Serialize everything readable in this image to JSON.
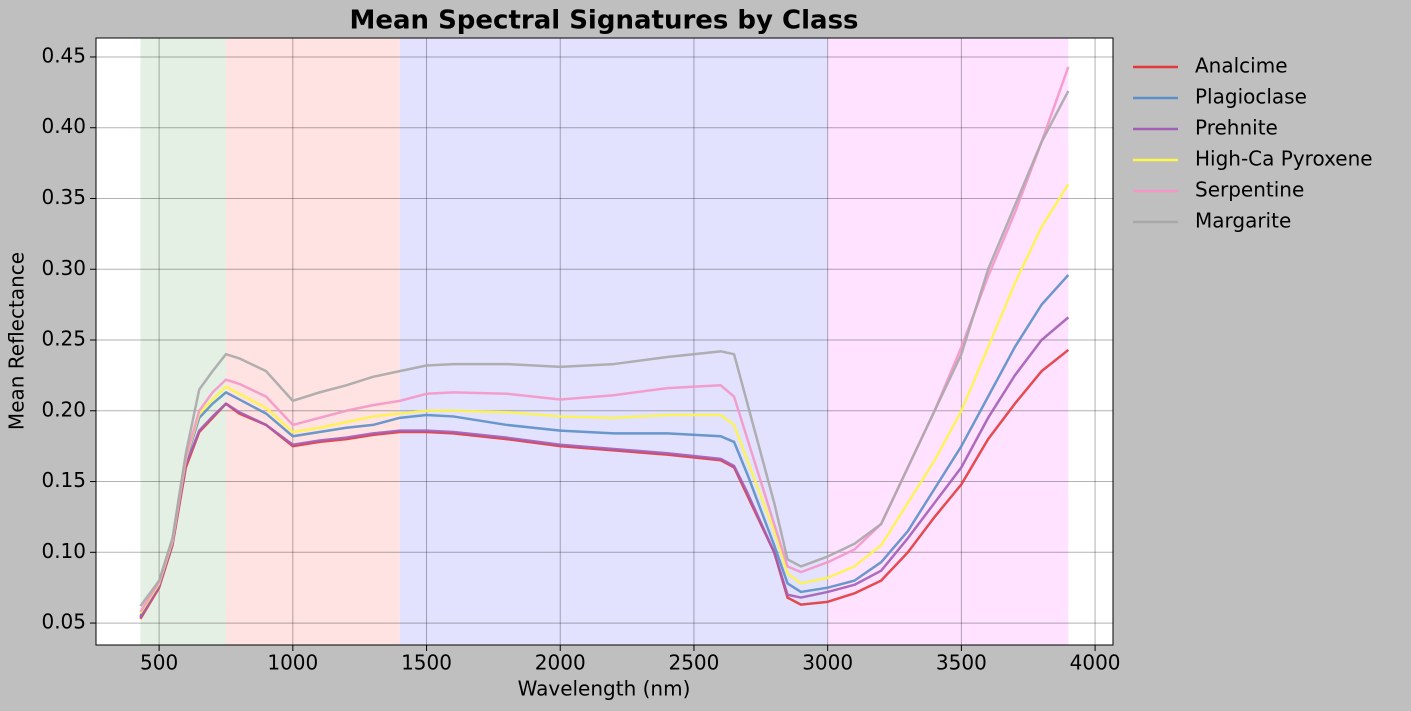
{
  "chart_data": {
    "type": "line",
    "title": "Mean Spectral Signatures by Class",
    "x_label": "Wavelength (nm)",
    "y_label": "Mean Reflectance",
    "xlim": [
      264,
      4067
    ],
    "ylim": [
      0.0345,
      0.4634
    ],
    "xticks": [
      500,
      1000,
      1500,
      2000,
      2500,
      3000,
      3500,
      4000
    ],
    "yticks": [
      0.05,
      {
        "value": 0.1,
        "label": "0.10"
      },
      0.15,
      {
        "value": 0.2,
        "label": "0.20"
      },
      0.25,
      {
        "value": 0.3,
        "label": "0.30"
      },
      0.35,
      {
        "value": 0.4,
        "label": "0.40"
      },
      0.45
    ],
    "grid": true,
    "legend": "outside-right",
    "regions": [
      {
        "start": 430,
        "end": 750,
        "color": "#e5f0e5"
      },
      {
        "start": 750,
        "end": 1400,
        "color": "#ffe2e2"
      },
      {
        "start": 1400,
        "end": 3000,
        "color": "#e2e2ff"
      },
      {
        "start": 3000,
        "end": 3900,
        "color": "#ffe2ff"
      }
    ],
    "x": [
      430,
      500,
      550,
      600,
      650,
      700,
      750,
      800,
      900,
      1000,
      1100,
      1200,
      1300,
      1400,
      1500,
      1600,
      1800,
      2000,
      2200,
      2400,
      2600,
      2650,
      2700,
      2800,
      2850,
      2900,
      3000,
      3100,
      3200,
      3300,
      3400,
      3500,
      3600,
      3700,
      3800,
      3900
    ],
    "series": [
      {
        "name": "Analcime",
        "color": "#e3393b",
        "values": [
          0.053,
          0.075,
          0.105,
          0.16,
          0.185,
          0.195,
          0.205,
          0.198,
          0.19,
          0.175,
          0.178,
          0.18,
          0.183,
          0.185,
          0.185,
          0.184,
          0.18,
          0.175,
          0.172,
          0.169,
          0.165,
          0.16,
          0.14,
          0.1,
          0.068,
          0.063,
          0.065,
          0.071,
          0.08,
          0.1,
          0.125,
          0.148,
          0.18,
          0.205,
          0.228,
          0.243
        ]
      },
      {
        "name": "Plagioclase",
        "color": "#5b8fc7",
        "values": [
          0.055,
          0.077,
          0.107,
          0.165,
          0.195,
          0.205,
          0.213,
          0.208,
          0.198,
          0.182,
          0.185,
          0.188,
          0.19,
          0.195,
          0.197,
          0.196,
          0.19,
          0.186,
          0.184,
          0.184,
          0.182,
          0.178,
          0.155,
          0.105,
          0.078,
          0.072,
          0.075,
          0.08,
          0.093,
          0.115,
          0.145,
          0.175,
          0.21,
          0.245,
          0.275,
          0.296
        ]
      },
      {
        "name": "Prehnite",
        "color": "#a35eb5",
        "values": [
          0.054,
          0.076,
          0.106,
          0.162,
          0.186,
          0.196,
          0.205,
          0.199,
          0.19,
          0.176,
          0.179,
          0.181,
          0.184,
          0.186,
          0.186,
          0.185,
          0.181,
          0.176,
          0.173,
          0.17,
          0.166,
          0.161,
          0.142,
          0.1,
          0.07,
          0.068,
          0.072,
          0.077,
          0.087,
          0.11,
          0.135,
          0.16,
          0.195,
          0.225,
          0.25,
          0.266
        ]
      },
      {
        "name": "High-Ca Pyroxene",
        "color": "#fdf54a",
        "values": [
          0.057,
          0.078,
          0.108,
          0.166,
          0.198,
          0.208,
          0.217,
          0.212,
          0.202,
          0.185,
          0.188,
          0.192,
          0.196,
          0.198,
          0.2,
          0.2,
          0.199,
          0.196,
          0.195,
          0.197,
          0.197,
          0.19,
          0.165,
          0.115,
          0.085,
          0.078,
          0.082,
          0.09,
          0.105,
          0.135,
          0.165,
          0.2,
          0.245,
          0.29,
          0.33,
          0.36
        ]
      },
      {
        "name": "Serpentine",
        "color": "#f497c8",
        "values": [
          0.058,
          0.079,
          0.109,
          0.167,
          0.2,
          0.213,
          0.222,
          0.219,
          0.21,
          0.19,
          0.195,
          0.2,
          0.204,
          0.207,
          0.212,
          0.213,
          0.212,
          0.208,
          0.211,
          0.216,
          0.218,
          0.21,
          0.18,
          0.12,
          0.09,
          0.086,
          0.093,
          0.102,
          0.12,
          0.16,
          0.2,
          0.245,
          0.295,
          0.34,
          0.39,
          0.443
        ]
      },
      {
        "name": "Margarite",
        "color": "#a8a8a8",
        "values": [
          0.062,
          0.08,
          0.11,
          0.17,
          0.215,
          0.228,
          0.24,
          0.237,
          0.228,
          0.207,
          0.213,
          0.218,
          0.224,
          0.228,
          0.232,
          0.233,
          0.233,
          0.231,
          0.233,
          0.238,
          0.242,
          0.24,
          0.205,
          0.135,
          0.095,
          0.09,
          0.097,
          0.106,
          0.12,
          0.16,
          0.2,
          0.24,
          0.3,
          0.345,
          0.39,
          0.426
        ]
      }
    ]
  }
}
